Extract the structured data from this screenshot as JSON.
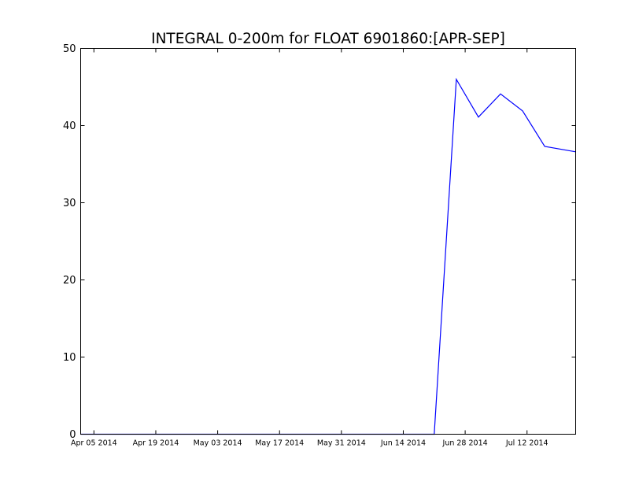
{
  "chart_data": {
    "type": "line",
    "title": "INTEGRAL 0-200m for FLOAT 6901860:[APR-SEP]",
    "xlabel": "",
    "ylabel": "",
    "x_axis": "date",
    "xlim": [
      "2014-04-02",
      "2014-07-23"
    ],
    "ylim": [
      0,
      50
    ],
    "yticks": [
      0,
      10,
      20,
      30,
      40,
      50
    ],
    "xticks": [
      "2014-04-05",
      "2014-04-19",
      "2014-05-03",
      "2014-05-17",
      "2014-05-31",
      "2014-06-14",
      "2014-06-28",
      "2014-07-12"
    ],
    "xtick_labels": [
      "Apr 05 2014",
      "Apr 19 2014",
      "May 03 2014",
      "May 17 2014",
      "May 31 2014",
      "Jun 14 2014",
      "Jun 28 2014",
      "Jul 12 2014"
    ],
    "grid": false,
    "legend": "none",
    "series": [
      {
        "color": "#0000ff",
        "x": [
          "2014-04-02",
          "2014-06-21",
          "2014-06-26",
          "2014-07-01",
          "2014-07-06",
          "2014-07-11",
          "2014-07-16",
          "2014-07-23"
        ],
        "y": [
          0,
          0,
          46.0,
          41.1,
          44.1,
          41.9,
          37.3,
          36.6
        ]
      }
    ]
  }
}
